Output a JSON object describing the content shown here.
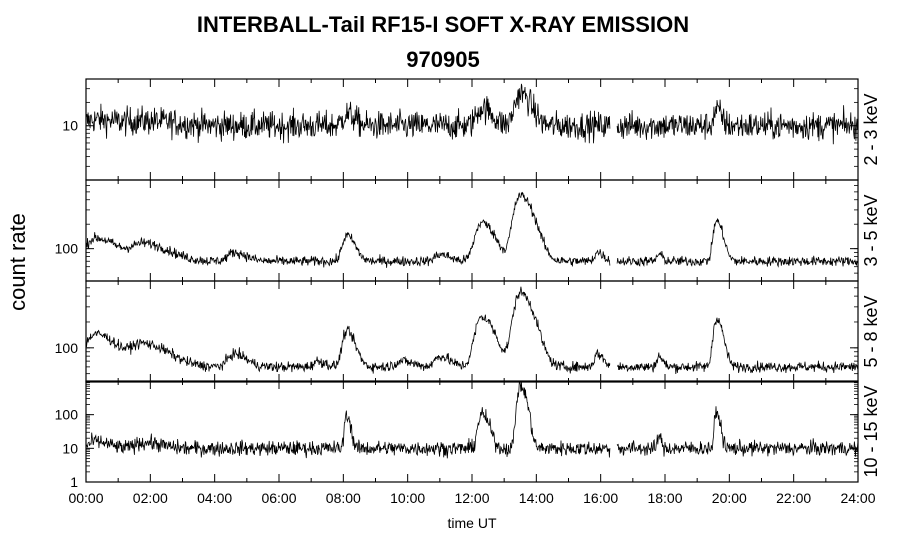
{
  "title": "INTERBALL-Tail RF15-I SOFT X-RAY EMISSION",
  "subtitle": "970905",
  "chart_data": {
    "type": "line",
    "ylabel": "count rate",
    "xlabel": "time UT",
    "y_scale": "log",
    "x_ticks": [
      "00:00",
      "02:00",
      "04:00",
      "06:00",
      "08:00",
      "10:00",
      "12:00",
      "14:00",
      "16:00",
      "18:00",
      "20:00",
      "22:00",
      "24:00"
    ],
    "xlim_hours": [
      0,
      24
    ],
    "data_gap_hours": [
      16.3,
      16.5
    ],
    "panels": [
      {
        "name": "2 - 3 keV",
        "ylim": [
          2,
          40
        ],
        "y_ticks": [
          {
            "value": 10,
            "label": "10"
          }
        ],
        "baseline": 10,
        "noise": 0.18,
        "peaks": [
          {
            "t": 0.3,
            "amp": 2,
            "width": 0.5
          },
          {
            "t": 1.8,
            "amp": 1.5,
            "width": 0.8
          },
          {
            "t": 8.1,
            "amp": 4,
            "width": 0.2
          },
          {
            "t": 12.3,
            "amp": 7,
            "width": 0.25
          },
          {
            "t": 13.5,
            "amp": 16,
            "width": 0.25
          },
          {
            "t": 19.6,
            "amp": 6,
            "width": 0.12
          }
        ]
      },
      {
        "name": "3 - 5 keV",
        "ylim": [
          40,
          700
        ],
        "y_ticks": [
          {
            "value": 100,
            "label": "100"
          }
        ],
        "baseline": 70,
        "noise": 0.06,
        "peaks": [
          {
            "t": 0.3,
            "amp": 65,
            "width": 0.5
          },
          {
            "t": 1.8,
            "amp": 45,
            "width": 0.6
          },
          {
            "t": 4.6,
            "amp": 20,
            "width": 0.3
          },
          {
            "t": 8.1,
            "amp": 75,
            "width": 0.2
          },
          {
            "t": 11.0,
            "amp": 15,
            "width": 0.25
          },
          {
            "t": 12.3,
            "amp": 140,
            "width": 0.3
          },
          {
            "t": 13.5,
            "amp": 380,
            "width": 0.3
          },
          {
            "t": 15.9,
            "amp": 20,
            "width": 0.15
          },
          {
            "t": 17.8,
            "amp": 15,
            "width": 0.1
          },
          {
            "t": 19.6,
            "amp": 150,
            "width": 0.15
          }
        ]
      },
      {
        "name": "5 - 8 keV",
        "ylim": [
          40,
          600
        ],
        "y_ticks": [
          {
            "value": 100,
            "label": "100"
          }
        ],
        "baseline": 60,
        "noise": 0.06,
        "peaks": [
          {
            "t": 0.3,
            "amp": 85,
            "width": 0.5
          },
          {
            "t": 1.8,
            "amp": 50,
            "width": 0.6
          },
          {
            "t": 4.6,
            "amp": 25,
            "width": 0.3
          },
          {
            "t": 7.2,
            "amp": 10,
            "width": 0.2
          },
          {
            "t": 8.1,
            "amp": 95,
            "width": 0.2
          },
          {
            "t": 9.8,
            "amp": 10,
            "width": 0.3
          },
          {
            "t": 11.0,
            "amp": 20,
            "width": 0.25
          },
          {
            "t": 12.3,
            "amp": 170,
            "width": 0.3
          },
          {
            "t": 13.5,
            "amp": 380,
            "width": 0.3
          },
          {
            "t": 15.9,
            "amp": 25,
            "width": 0.15
          },
          {
            "t": 17.8,
            "amp": 20,
            "width": 0.1
          },
          {
            "t": 19.6,
            "amp": 160,
            "width": 0.15
          }
        ]
      },
      {
        "name": "10 - 15 keV",
        "ylim": [
          1,
          1000
        ],
        "y_ticks": [
          {
            "value": 1,
            "label": "1"
          },
          {
            "value": 10,
            "label": "10"
          },
          {
            "value": 100,
            "label": "100"
          }
        ],
        "baseline": 10,
        "noise": 0.22,
        "peaks": [
          {
            "t": 0.3,
            "amp": 6,
            "width": 0.3
          },
          {
            "t": 1.8,
            "amp": 5,
            "width": 0.4
          },
          {
            "t": 8.1,
            "amp": 90,
            "width": 0.08
          },
          {
            "t": 12.3,
            "amp": 90,
            "width": 0.15
          },
          {
            "t": 13.5,
            "amp": 700,
            "width": 0.12
          },
          {
            "t": 17.8,
            "amp": 15,
            "width": 0.05
          },
          {
            "t": 19.6,
            "amp": 100,
            "width": 0.08
          }
        ]
      }
    ]
  }
}
